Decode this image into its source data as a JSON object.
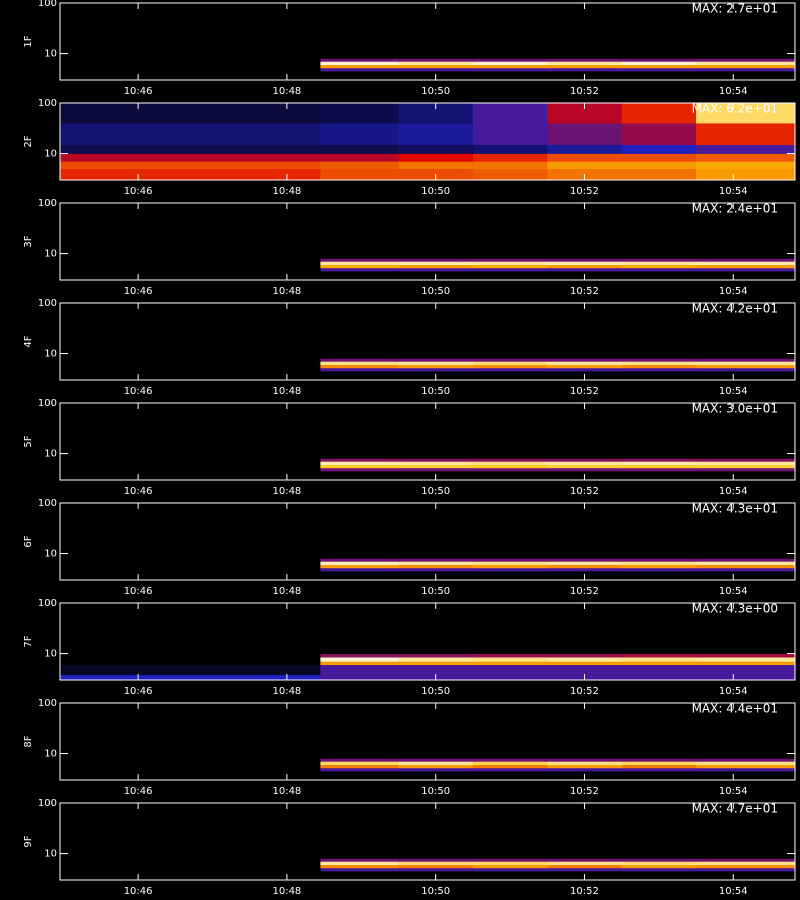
{
  "chart_data": [
    {
      "type": "heatmap",
      "ylabel": "1F",
      "annotation": "MAX: 2.7e+01",
      "log_y": true,
      "xlim": [
        44.95,
        54.83
      ],
      "ylim": [
        3,
        100
      ],
      "xticks": [
        {
          "value": 46,
          "label": "10:46"
        },
        {
          "value": 48,
          "label": "10:48"
        },
        {
          "value": 50,
          "label": "10:50"
        },
        {
          "value": 52,
          "label": "10:52"
        },
        {
          "value": 54,
          "label": "10:54"
        }
      ],
      "yticks": [
        10,
        100
      ],
      "colormap": [
        "#000000",
        "#2020c0",
        "#e00000",
        "#ffc000",
        "#ffffff"
      ],
      "x_edges": [
        44.95,
        48.45,
        49.5,
        50.5,
        51.5,
        52.5,
        53.5,
        54.83
      ],
      "y_edges": [
        3,
        4.5,
        5.2,
        6,
        7,
        8,
        100
      ],
      "z": [
        [
          0,
          0,
          0,
          0,
          0,
          0,
          0
        ],
        [
          0,
          0.3,
          0.3,
          0.3,
          0.3,
          0.3,
          0.3
        ],
        [
          0,
          0.7,
          0.7,
          0.7,
          0.7,
          0.7,
          0.7
        ],
        [
          0,
          0.95,
          0.9,
          0.95,
          0.9,
          0.95,
          0.9
        ],
        [
          0,
          0.35,
          0.35,
          0.35,
          0.35,
          0.35,
          0.35
        ],
        [
          0,
          0,
          0,
          0,
          0,
          0,
          0
        ]
      ]
    },
    {
      "type": "heatmap",
      "ylabel": "2F",
      "annotation": "MAX: 6.2e+01",
      "log_y": true,
      "xlim": [
        44.95,
        54.83
      ],
      "ylim": [
        3,
        100
      ],
      "xticks": [
        {
          "value": 46,
          "label": "10:46"
        },
        {
          "value": 48,
          "label": "10:48"
        },
        {
          "value": 50,
          "label": "10:50"
        },
        {
          "value": 52,
          "label": "10:52"
        },
        {
          "value": 54,
          "label": "10:54"
        }
      ],
      "yticks": [
        10,
        100
      ],
      "colormap": [
        "#000000",
        "#2020c0",
        "#e00000",
        "#ffc000",
        "#ffffff"
      ],
      "x_edges": [
        44.95,
        48.45,
        49.5,
        50.5,
        51.5,
        52.5,
        53.5,
        54.83
      ],
      "y_edges": [
        3,
        5,
        7,
        10,
        15,
        40,
        100
      ],
      "z": [
        [
          0.55,
          0.6,
          0.6,
          0.62,
          0.65,
          0.65,
          0.7
        ],
        [
          0.6,
          0.62,
          0.65,
          0.65,
          0.7,
          0.7,
          0.72
        ],
        [
          0.45,
          0.45,
          0.5,
          0.55,
          0.6,
          0.6,
          0.62
        ],
        [
          0.1,
          0.1,
          0.12,
          0.15,
          0.2,
          0.25,
          0.3
        ],
        [
          0.15,
          0.18,
          0.2,
          0.3,
          0.35,
          0.4,
          0.55
        ],
        [
          0.08,
          0.1,
          0.15,
          0.3,
          0.45,
          0.55,
          0.85
        ]
      ]
    },
    {
      "type": "heatmap",
      "ylabel": "3F",
      "annotation": "MAX: 2.4e+01",
      "log_y": true,
      "xlim": [
        44.95,
        54.83
      ],
      "ylim": [
        3,
        100
      ],
      "xticks": [
        {
          "value": 46,
          "label": "10:46"
        },
        {
          "value": 48,
          "label": "10:48"
        },
        {
          "value": 50,
          "label": "10:50"
        },
        {
          "value": 52,
          "label": "10:52"
        },
        {
          "value": 54,
          "label": "10:54"
        }
      ],
      "yticks": [
        10,
        100
      ],
      "colormap": [
        "#000000",
        "#2020c0",
        "#e00000",
        "#ffc000",
        "#ffffff"
      ],
      "x_edges": [
        44.95,
        48.45,
        49.5,
        50.5,
        51.5,
        52.5,
        53.5,
        54.83
      ],
      "y_edges": [
        3,
        4.5,
        5.2,
        6,
        7,
        8,
        100
      ],
      "z": [
        [
          0,
          0,
          0,
          0,
          0,
          0,
          0
        ],
        [
          0,
          0.3,
          0.3,
          0.3,
          0.3,
          0.3,
          0.3
        ],
        [
          0,
          0.72,
          0.7,
          0.72,
          0.7,
          0.72,
          0.7
        ],
        [
          0,
          0.9,
          0.92,
          0.9,
          0.92,
          0.9,
          0.92
        ],
        [
          0,
          0.35,
          0.35,
          0.35,
          0.35,
          0.35,
          0.35
        ],
        [
          0,
          0,
          0,
          0,
          0,
          0,
          0
        ]
      ]
    },
    {
      "type": "heatmap",
      "ylabel": "4F",
      "annotation": "MAX: 4.2e+01",
      "log_y": true,
      "xlim": [
        44.95,
        54.83
      ],
      "ylim": [
        3,
        100
      ],
      "xticks": [
        {
          "value": 46,
          "label": "10:46"
        },
        {
          "value": 48,
          "label": "10:48"
        },
        {
          "value": 50,
          "label": "10:50"
        },
        {
          "value": 52,
          "label": "10:52"
        },
        {
          "value": 54,
          "label": "10:54"
        }
      ],
      "yticks": [
        10,
        100
      ],
      "colormap": [
        "#000000",
        "#2020c0",
        "#e00000",
        "#ffc000",
        "#ffffff"
      ],
      "x_edges": [
        44.95,
        48.45,
        49.5,
        50.5,
        51.5,
        52.5,
        53.5,
        54.83
      ],
      "y_edges": [
        3,
        4.5,
        5.2,
        6,
        7,
        8,
        100
      ],
      "z": [
        [
          0,
          0,
          0,
          0,
          0,
          0,
          0
        ],
        [
          0,
          0.3,
          0.3,
          0.3,
          0.3,
          0.3,
          0.3
        ],
        [
          0,
          0.68,
          0.7,
          0.68,
          0.7,
          0.68,
          0.7
        ],
        [
          0,
          0.88,
          0.9,
          0.86,
          0.9,
          0.88,
          0.9
        ],
        [
          0,
          0.35,
          0.35,
          0.35,
          0.35,
          0.35,
          0.35
        ],
        [
          0,
          0,
          0,
          0,
          0,
          0,
          0
        ]
      ]
    },
    {
      "type": "heatmap",
      "ylabel": "5F",
      "annotation": "MAX: 3.0e+01",
      "log_y": true,
      "xlim": [
        44.95,
        54.83
      ],
      "ylim": [
        3,
        100
      ],
      "xticks": [
        {
          "value": 46,
          "label": "10:46"
        },
        {
          "value": 48,
          "label": "10:48"
        },
        {
          "value": 50,
          "label": "10:50"
        },
        {
          "value": 52,
          "label": "10:52"
        },
        {
          "value": 54,
          "label": "10:54"
        }
      ],
      "yticks": [
        10,
        100
      ],
      "colormap": [
        "#000000",
        "#2020c0",
        "#e00000",
        "#ffc000",
        "#ffffff"
      ],
      "x_edges": [
        44.95,
        48.45,
        49.5,
        50.5,
        51.5,
        52.5,
        53.5,
        54.83
      ],
      "y_edges": [
        3,
        4.5,
        5.2,
        6,
        7,
        8,
        100
      ],
      "z": [
        [
          0,
          0,
          0,
          0,
          0,
          0,
          0
        ],
        [
          0,
          0.35,
          0.35,
          0.35,
          0.35,
          0.35,
          0.35
        ],
        [
          0,
          0.78,
          0.8,
          0.78,
          0.8,
          0.78,
          0.8
        ],
        [
          0,
          0.92,
          0.9,
          0.88,
          0.9,
          0.92,
          0.9
        ],
        [
          0,
          0.38,
          0.38,
          0.38,
          0.38,
          0.38,
          0.38
        ],
        [
          0,
          0,
          0,
          0,
          0,
          0,
          0
        ]
      ]
    },
    {
      "type": "heatmap",
      "ylabel": "6F",
      "annotation": "MAX: 4.3e+01",
      "log_y": true,
      "xlim": [
        44.95,
        54.83
      ],
      "ylim": [
        3,
        100
      ],
      "xticks": [
        {
          "value": 46,
          "label": "10:46"
        },
        {
          "value": 48,
          "label": "10:48"
        },
        {
          "value": 50,
          "label": "10:50"
        },
        {
          "value": 52,
          "label": "10:52"
        },
        {
          "value": 54,
          "label": "10:54"
        }
      ],
      "yticks": [
        10,
        100
      ],
      "colormap": [
        "#000000",
        "#2020c0",
        "#e00000",
        "#ffc000",
        "#ffffff"
      ],
      "x_edges": [
        44.95,
        48.45,
        49.5,
        50.5,
        51.5,
        52.5,
        53.5,
        54.83
      ],
      "y_edges": [
        3,
        4.5,
        5.2,
        6,
        7,
        8,
        100
      ],
      "z": [
        [
          0,
          0,
          0,
          0,
          0,
          0,
          0
        ],
        [
          0,
          0.3,
          0.3,
          0.3,
          0.3,
          0.3,
          0.3
        ],
        [
          0,
          0.7,
          0.68,
          0.7,
          0.68,
          0.7,
          0.68
        ],
        [
          0,
          0.93,
          0.9,
          0.88,
          0.9,
          0.88,
          0.9
        ],
        [
          0,
          0.35,
          0.35,
          0.35,
          0.35,
          0.35,
          0.35
        ],
        [
          0,
          0,
          0,
          0,
          0,
          0,
          0
        ]
      ]
    },
    {
      "type": "heatmap",
      "ylabel": "7F",
      "annotation": "MAX: 4.3e+00",
      "log_y": true,
      "xlim": [
        44.95,
        54.83
      ],
      "ylim": [
        3,
        100
      ],
      "xticks": [
        {
          "value": 46,
          "label": "10:46"
        },
        {
          "value": 48,
          "label": "10:48"
        },
        {
          "value": 50,
          "label": "10:50"
        },
        {
          "value": 52,
          "label": "10:52"
        },
        {
          "value": 54,
          "label": "10:54"
        }
      ],
      "yticks": [
        10,
        100
      ],
      "colormap": [
        "#000000",
        "#2020c0",
        "#e00000",
        "#ffc000",
        "#ffffff"
      ],
      "x_edges": [
        44.95,
        48.45,
        49.5,
        50.5,
        51.5,
        52.5,
        53.5,
        54.83
      ],
      "y_edges": [
        3,
        3.8,
        6,
        7,
        8.5,
        10,
        100
      ],
      "z": [
        [
          0.25,
          0.3,
          0.3,
          0.3,
          0.3,
          0.3,
          0.3
        ],
        [
          0.05,
          0.3,
          0.3,
          0.3,
          0.3,
          0.3,
          0.3
        ],
        [
          0,
          0.7,
          0.7,
          0.7,
          0.7,
          0.7,
          0.7
        ],
        [
          0,
          0.95,
          0.9,
          0.88,
          0.9,
          0.88,
          0.9
        ],
        [
          0,
          0.38,
          0.38,
          0.4,
          0.4,
          0.42,
          0.42
        ],
        [
          0,
          0,
          0,
          0,
          0,
          0,
          0
        ]
      ]
    },
    {
      "type": "heatmap",
      "ylabel": "8F",
      "annotation": "MAX: 4.4e+01",
      "log_y": true,
      "xlim": [
        44.95,
        54.83
      ],
      "ylim": [
        3,
        100
      ],
      "xticks": [
        {
          "value": 46,
          "label": "10:46"
        },
        {
          "value": 48,
          "label": "10:48"
        },
        {
          "value": 50,
          "label": "10:50"
        },
        {
          "value": 52,
          "label": "10:52"
        },
        {
          "value": 54,
          "label": "10:54"
        }
      ],
      "yticks": [
        10,
        100
      ],
      "colormap": [
        "#000000",
        "#2020c0",
        "#e00000",
        "#ffc000",
        "#ffffff"
      ],
      "x_edges": [
        44.95,
        48.45,
        49.5,
        50.5,
        51.5,
        52.5,
        53.5,
        54.83
      ],
      "y_edges": [
        3,
        4.5,
        5.2,
        6,
        7,
        8,
        100
      ],
      "z": [
        [
          0,
          0,
          0,
          0,
          0,
          0,
          0
        ],
        [
          0,
          0.3,
          0.3,
          0.3,
          0.3,
          0.3,
          0.3
        ],
        [
          0,
          0.66,
          0.7,
          0.66,
          0.7,
          0.66,
          0.7
        ],
        [
          0,
          0.85,
          0.9,
          0.82,
          0.88,
          0.84,
          0.88
        ],
        [
          0,
          0.35,
          0.35,
          0.35,
          0.35,
          0.35,
          0.35
        ],
        [
          0,
          0,
          0,
          0,
          0,
          0,
          0
        ]
      ]
    },
    {
      "type": "heatmap",
      "ylabel": "9F",
      "annotation": "MAX: 4.7e+01",
      "log_y": true,
      "xlim": [
        44.95,
        54.83
      ],
      "ylim": [
        3,
        100
      ],
      "xticks": [
        {
          "value": 46,
          "label": "10:46"
        },
        {
          "value": 48,
          "label": "10:48"
        },
        {
          "value": 50,
          "label": "10:50"
        },
        {
          "value": 52,
          "label": "10:52"
        },
        {
          "value": 54,
          "label": "10:54"
        }
      ],
      "yticks": [
        10,
        100
      ],
      "colormap": [
        "#000000",
        "#2020c0",
        "#e00000",
        "#ffc000",
        "#ffffff"
      ],
      "x_edges": [
        44.95,
        48.45,
        49.5,
        50.5,
        51.5,
        52.5,
        53.5,
        54.83
      ],
      "y_edges": [
        3,
        4.5,
        5.2,
        6,
        7,
        8,
        100
      ],
      "z": [
        [
          0,
          0,
          0,
          0,
          0,
          0,
          0
        ],
        [
          0,
          0.3,
          0.3,
          0.3,
          0.3,
          0.3,
          0.3
        ],
        [
          0,
          0.68,
          0.66,
          0.7,
          0.66,
          0.7,
          0.68
        ],
        [
          0,
          0.9,
          0.86,
          0.84,
          0.88,
          0.86,
          0.88
        ],
        [
          0,
          0.35,
          0.35,
          0.35,
          0.35,
          0.35,
          0.35
        ],
        [
          0,
          0,
          0,
          0,
          0,
          0,
          0
        ]
      ]
    }
  ]
}
